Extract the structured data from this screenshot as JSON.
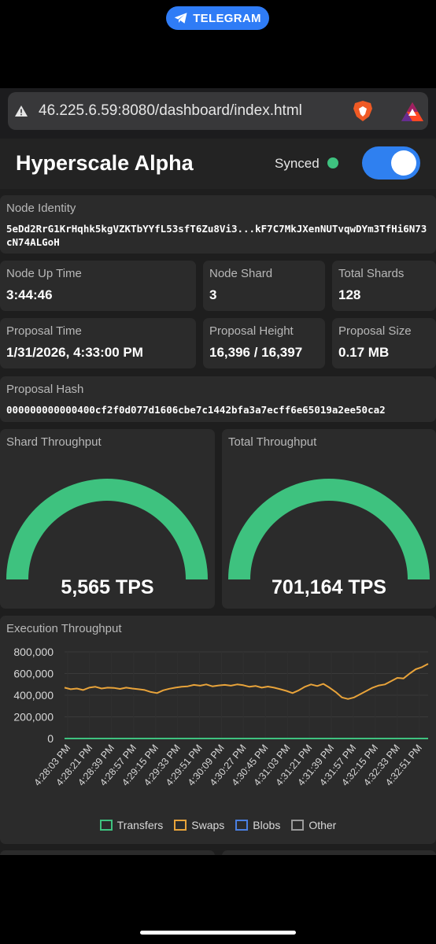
{
  "status_bar": {
    "app_label": "TELEGRAM"
  },
  "browser": {
    "url": "46.225.6.59:8080/dashboard/index.html"
  },
  "header": {
    "title": "Hyperscale Alpha",
    "sync_status": "Synced",
    "toggle_on": true
  },
  "node_identity": {
    "label": "Node Identity",
    "value": "5eDd2RrG1KrHqhk5kgVZKTbYYfL53sfT6Zu8Vi3...kF7C7MkJXenNUTvqwDYm3TfHi6N73cN74ALGoH"
  },
  "stats_row1": [
    {
      "label": "Node Up Time",
      "value": "3:44:46"
    },
    {
      "label": "Node Shard",
      "value": "3"
    },
    {
      "label": "Total Shards",
      "value": "128"
    }
  ],
  "stats_row2": [
    {
      "label": "Proposal Time",
      "value": "1/31/2026, 4:33:00 PM"
    },
    {
      "label": "Proposal Height",
      "value": "16,396 / 16,397"
    },
    {
      "label": "Proposal Size",
      "value": "0.17 MB"
    }
  ],
  "proposal_hash": {
    "label": "Proposal Hash",
    "value": "000000000000400cf2f0d077d1606cbe7c1442bfa3a7ecff6e65019a2ee50ca2"
  },
  "gauges": [
    {
      "label": "Shard Throughput",
      "value": "5,565 TPS",
      "fill": 1.0
    },
    {
      "label": "Total Throughput",
      "value": "701,164 TPS",
      "fill": 1.0
    }
  ],
  "colors": {
    "accent": "#2f80f0",
    "gauge": "#3ec27f",
    "transfers": "#3ec27f",
    "swaps": "#e8a33a",
    "blobs": "#4a7fe0",
    "other": "#9a9a9a"
  },
  "chart_data": {
    "type": "line",
    "title": "Execution Throughput",
    "yticks": [
      "800,000",
      "600,000",
      "400,000",
      "200,000",
      "0"
    ],
    "ylim": [
      0,
      800000
    ],
    "x_tick_labels": [
      "4:28:03 PM",
      "4:28:21 PM",
      "4:28:39 PM",
      "4:28:57 PM",
      "4:29:15 PM",
      "4:29:33 PM",
      "4:29:51 PM",
      "4:30:09 PM",
      "4:30:27 PM",
      "4:30:45 PM",
      "4:31:03 PM",
      "4:31:21 PM",
      "4:31:39 PM",
      "4:31:57 PM",
      "4:32:15 PM",
      "4:32:33 PM",
      "4:32:51 PM"
    ],
    "grid": true,
    "legend_position": "bottom",
    "series": [
      {
        "name": "Transfers",
        "color": "#3ec27f",
        "values": [
          0,
          0,
          0,
          0,
          0,
          0,
          0,
          0,
          0,
          0,
          0,
          0,
          0,
          0,
          0,
          0,
          0,
          0,
          0,
          0,
          0,
          0,
          0,
          0,
          0,
          0,
          0,
          0,
          0,
          0,
          0,
          0,
          0,
          0,
          0,
          0,
          0,
          0,
          0,
          0,
          0,
          0,
          0,
          0,
          0,
          0,
          0,
          0,
          0,
          0,
          0,
          0,
          0,
          0,
          0,
          0,
          0,
          0,
          0,
          0
        ]
      },
      {
        "name": "Swaps",
        "color": "#e8a33a",
        "values": [
          470000,
          455000,
          462000,
          448000,
          470000,
          478000,
          462000,
          470000,
          468000,
          458000,
          470000,
          462000,
          455000,
          448000,
          430000,
          420000,
          445000,
          460000,
          470000,
          478000,
          482000,
          495000,
          488000,
          500000,
          482000,
          490000,
          495000,
          488000,
          500000,
          492000,
          478000,
          486000,
          470000,
          480000,
          470000,
          455000,
          440000,
          420000,
          445000,
          478000,
          500000,
          485000,
          505000,
          470000,
          430000,
          380000,
          365000,
          380000,
          410000,
          440000,
          470000,
          490000,
          500000,
          530000,
          560000,
          555000,
          600000,
          640000,
          660000,
          690000
        ]
      },
      {
        "name": "Blobs",
        "color": "#4a7fe0",
        "values": []
      },
      {
        "name": "Other",
        "color": "#9a9a9a",
        "values": []
      }
    ]
  }
}
